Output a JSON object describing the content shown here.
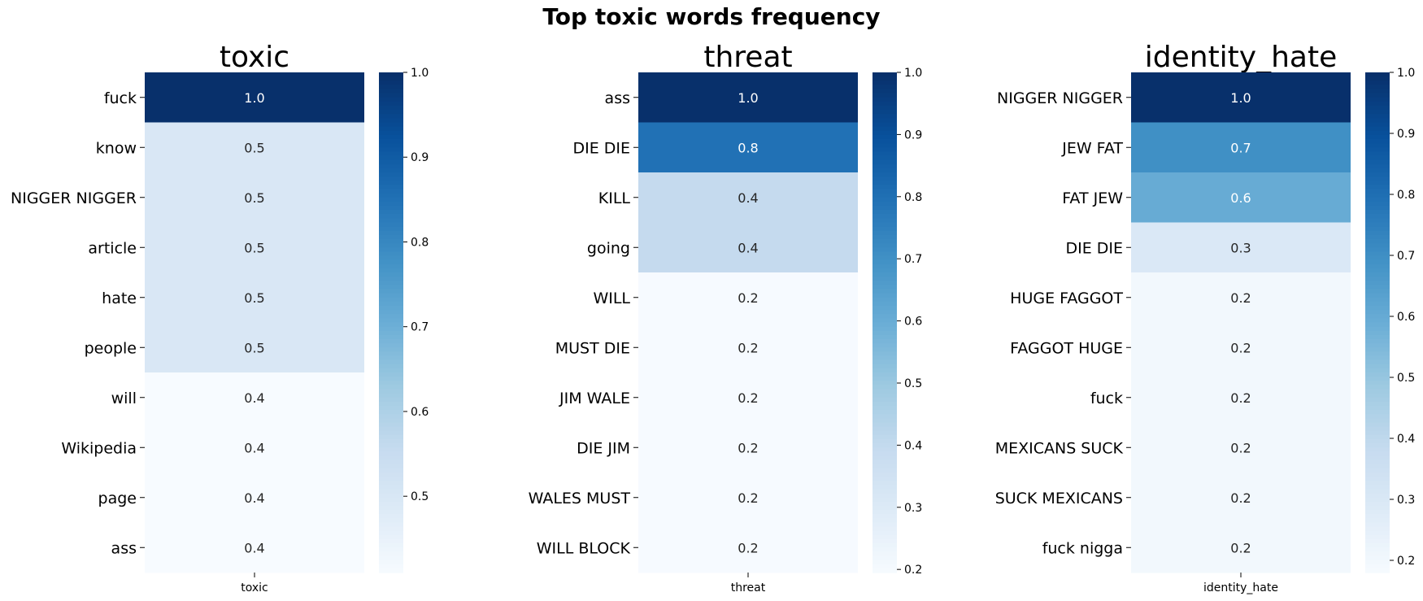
{
  "figure": {
    "title": "Top toxic words frequency"
  },
  "chart_data": [
    {
      "type": "heatmap",
      "title": "toxic",
      "xlabel": "toxic",
      "categories": [
        "fuck",
        "know",
        "NIGGER NIGGER",
        "article",
        "hate",
        "people",
        "will",
        "Wikipedia",
        "page",
        "ass"
      ],
      "values": [
        1.0,
        0.5,
        0.5,
        0.5,
        0.5,
        0.5,
        0.4,
        0.4,
        0.4,
        0.4
      ],
      "colorbar": {
        "range": [
          0.41,
          1.0
        ],
        "ticks": [
          "0.5",
          "0.6",
          "0.7",
          "0.8",
          "0.9",
          "1.0"
        ],
        "tick_values": [
          0.5,
          0.6,
          0.7,
          0.8,
          0.9,
          1.0
        ]
      },
      "colormap": "Blues"
    },
    {
      "type": "heatmap",
      "title": "threat",
      "xlabel": "threat",
      "categories": [
        "ass",
        "DIE DIE",
        "KILL",
        "going",
        "WILL",
        "MUST DIE",
        "JIM WALE",
        "DIE JIM",
        "WALES MUST",
        "WILL BLOCK"
      ],
      "values": [
        1.0,
        0.8,
        0.4,
        0.4,
        0.2,
        0.2,
        0.2,
        0.2,
        0.2,
        0.2
      ],
      "colorbar": {
        "range": [
          0.195,
          1.0
        ],
        "ticks": [
          "0.2",
          "0.3",
          "0.4",
          "0.5",
          "0.6",
          "0.7",
          "0.8",
          "0.9",
          "1.0"
        ],
        "tick_values": [
          0.2,
          0.3,
          0.4,
          0.5,
          0.6,
          0.7,
          0.8,
          0.9,
          1.0
        ]
      },
      "colormap": "Blues"
    },
    {
      "type": "heatmap",
      "title": "identity_hate",
      "xlabel": "identity_hate",
      "categories": [
        "NIGGER NIGGER",
        "JEW FAT",
        "FAT JEW",
        "DIE DIE",
        "HUGE FAGGOT",
        "FAGGOT HUGE",
        "fuck",
        "MEXICANS SUCK",
        "SUCK MEXICANS",
        "fuck nigga"
      ],
      "values": [
        1.0,
        0.7,
        0.6,
        0.3,
        0.2,
        0.2,
        0.2,
        0.2,
        0.2,
        0.2
      ],
      "colorbar": {
        "range": [
          0.18,
          1.0
        ],
        "ticks": [
          "0.2",
          "0.3",
          "0.4",
          "0.5",
          "0.6",
          "0.7",
          "0.8",
          "0.9",
          "1.0"
        ],
        "tick_values": [
          0.2,
          0.3,
          0.4,
          0.5,
          0.6,
          0.7,
          0.8,
          0.9,
          1.0
        ]
      },
      "colormap": "Blues"
    }
  ]
}
